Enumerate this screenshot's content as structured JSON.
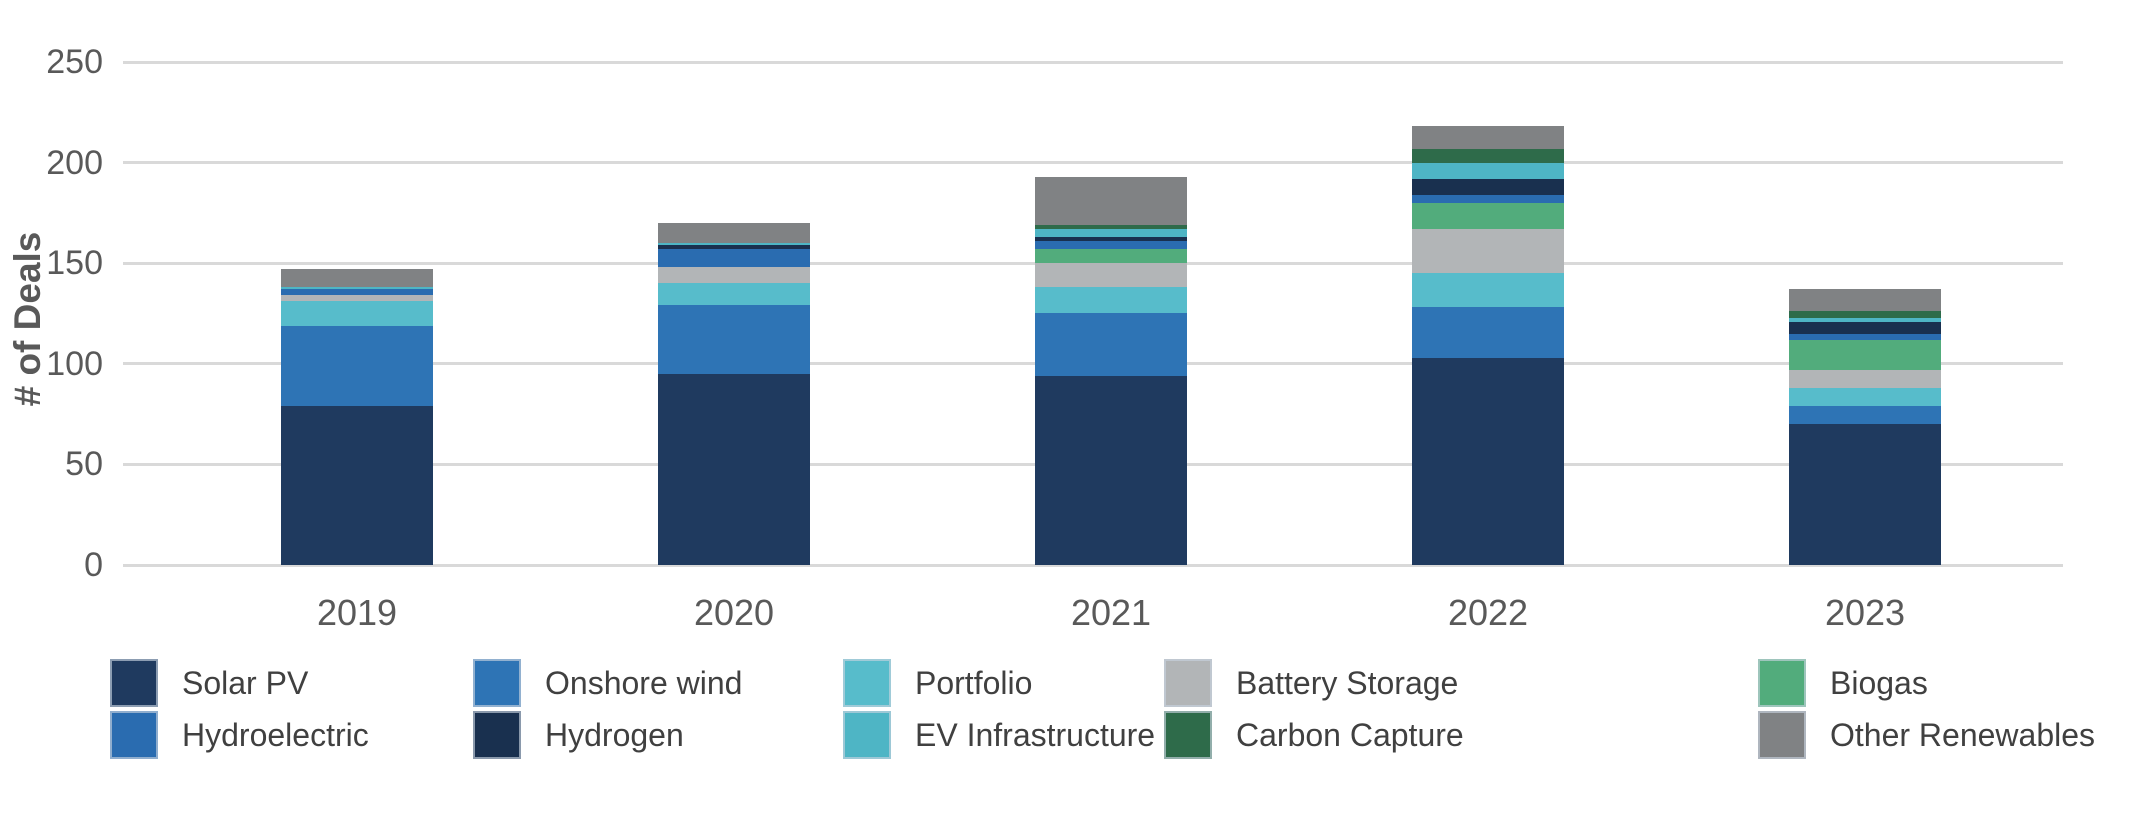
{
  "chart": {
    "y_axis_title": "# of Deals",
    "y_tick_labels": [
      "0",
      "50",
      "100",
      "150",
      "200",
      "250"
    ],
    "x_tick_labels": [
      "2019",
      "2020",
      "2021",
      "2022",
      "2023"
    ]
  },
  "chart_data": {
    "type": "bar",
    "subtype": "stacked",
    "title": "",
    "xlabel": "",
    "ylabel": "# of Deals",
    "ylim": [
      0,
      250
    ],
    "y_tick_step": 50,
    "grid": true,
    "gridline_color": "#d9d9d9",
    "legend_position": "bottom",
    "categories": [
      "2019",
      "2020",
      "2021",
      "2022",
      "2023"
    ],
    "series": [
      {
        "name": "Solar PV",
        "color": "#1F3A5F",
        "values": [
          79,
          95,
          94,
          103,
          70
        ]
      },
      {
        "name": "Onshore wind",
        "color": "#2E74B5",
        "values": [
          40,
          34,
          31,
          25,
          9
        ]
      },
      {
        "name": "Portfolio",
        "color": "#57BCCB",
        "values": [
          12,
          11,
          13,
          17,
          9
        ]
      },
      {
        "name": "Battery Storage",
        "color": "#B2B5B7",
        "values": [
          3,
          8,
          12,
          22,
          9
        ]
      },
      {
        "name": "Biogas",
        "color": "#52AC7C",
        "values": [
          0,
          0,
          7,
          13,
          15
        ]
      },
      {
        "name": "Hydroelectric",
        "color": "#2A6CB0",
        "values": [
          3,
          9,
          4,
          4,
          3
        ]
      },
      {
        "name": "Hydrogen",
        "color": "#19304F",
        "values": [
          0,
          2,
          2,
          8,
          6
        ]
      },
      {
        "name": "EV Infrastructure",
        "color": "#4EB5C5",
        "values": [
          1,
          1,
          4,
          8,
          2
        ]
      },
      {
        "name": "Carbon Capture",
        "color": "#2E6B4A",
        "values": [
          0,
          0,
          2,
          7,
          3
        ]
      },
      {
        "name": "Other Renewables",
        "color": "#808284",
        "values": [
          9,
          10,
          24,
          11,
          11
        ]
      }
    ],
    "stack_order_bottom_to_top": [
      "Solar PV",
      "Onshore wind",
      "Portfolio",
      "Battery Storage",
      "Biogas",
      "Hydroelectric",
      "Hydrogen",
      "EV Infrastructure",
      "Carbon Capture",
      "Other Renewables"
    ],
    "stack_totals": [
      147,
      170,
      193,
      218,
      137
    ],
    "legend_rows": [
      [
        "Solar PV",
        "Onshore wind",
        "Portfolio",
        "Battery Storage",
        "Biogas"
      ],
      [
        "Hydroelectric",
        "Hydrogen",
        "EV Infrastructure",
        "Carbon Capture",
        "Other Renewables"
      ]
    ]
  }
}
